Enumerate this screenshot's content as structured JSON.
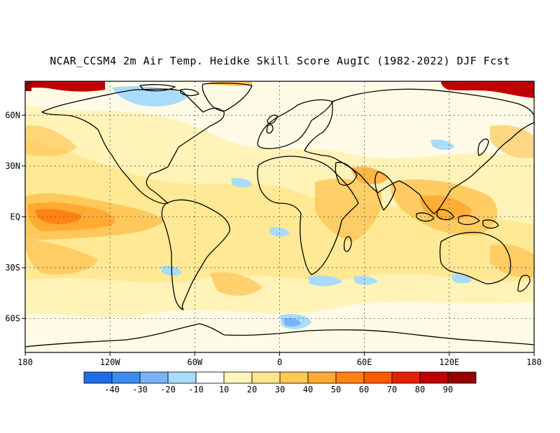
{
  "title": "NCAR_CCSM4 2m Air Temp. Heidke Skill Score AugIC (1982-2022) DJF Fcst",
  "map": {
    "lon_labels": [
      "180",
      "120W",
      "60W",
      "0",
      "60E",
      "120E",
      "180"
    ],
    "lat_labels": [
      "60N",
      "30N",
      "EQ",
      "30S",
      "60S"
    ],
    "lon_ticks": [
      -180,
      -120,
      -60,
      0,
      60,
      120,
      180
    ],
    "lat_ticks": [
      60,
      30,
      0,
      -30,
      -60
    ],
    "lon_range": [
      -180,
      180
    ],
    "lat_range": [
      -80,
      80
    ],
    "grid": true
  },
  "colorbar": {
    "labels": [
      "-40",
      "-30",
      "-20",
      "-10",
      "10",
      "20",
      "30",
      "40",
      "50",
      "60",
      "70",
      "80",
      "90"
    ],
    "colors": [
      "#1e6ee6",
      "#3c8cf0",
      "#78b4f5",
      "#a8dcfa",
      "#ffffff",
      "#fff5be",
      "#ffe68c",
      "#ffc85a",
      "#ffaa32",
      "#ff8214",
      "#ff5a00",
      "#e61e00",
      "#be0000",
      "#960000"
    ]
  }
}
